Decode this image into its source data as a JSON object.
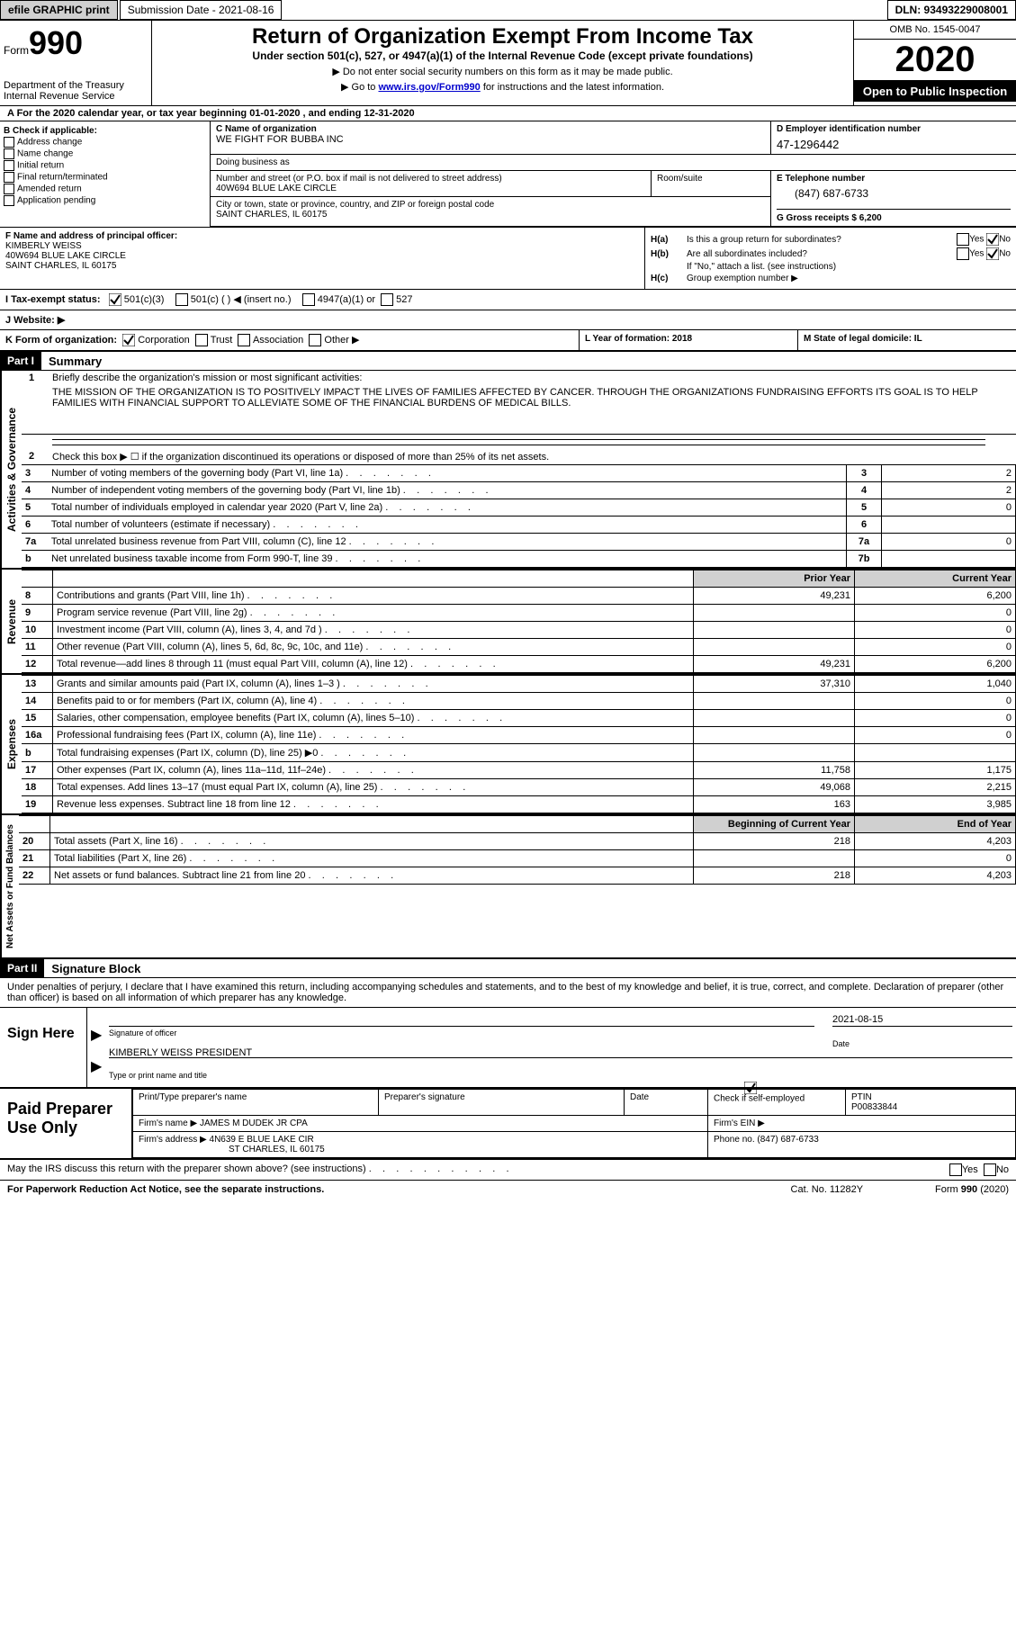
{
  "topbar": {
    "efile": "efile GRAPHIC print",
    "submission_label": "Submission Date - 2021-08-16",
    "dln": "DLN: 93493229008001"
  },
  "header": {
    "form_word": "Form",
    "form_number": "990",
    "dept": "Department of the Treasury",
    "irs": "Internal Revenue Service",
    "title": "Return of Organization Exempt From Income Tax",
    "subtitle": "Under section 501(c), 527, or 4947(a)(1) of the Internal Revenue Code (except private foundations)",
    "note1": "▶ Do not enter social security numbers on this form as it may be made public.",
    "note2_pre": "▶ Go to ",
    "note2_link": "www.irs.gov/Form990",
    "note2_post": " for instructions and the latest information.",
    "omb": "OMB No. 1545-0047",
    "year": "2020",
    "inspection": "Open to Public Inspection"
  },
  "row_a": "A For the 2020 calendar year, or tax year beginning 01-01-2020    , and ending 12-31-2020",
  "col_b": {
    "label": "B Check if applicable:",
    "opts": [
      "Address change",
      "Name change",
      "Initial return",
      "Final return/terminated",
      "Amended return",
      "Application pending"
    ]
  },
  "c": {
    "name_label": "C Name of organization",
    "name": "WE FIGHT FOR BUBBA INC",
    "dba_label": "Doing business as",
    "street_label": "Number and street (or P.O. box if mail is not delivered to street address)",
    "street": "40W694 BLUE LAKE CIRCLE",
    "room_label": "Room/suite",
    "city_label": "City or town, state or province, country, and ZIP or foreign postal code",
    "city": "SAINT CHARLES, IL  60175"
  },
  "d": {
    "label": "D Employer identification number",
    "ein": "47-1296442"
  },
  "e": {
    "label": "E Telephone number",
    "phone": "(847) 687-6733"
  },
  "g": {
    "label": "G Gross receipts $",
    "amount": "6,200"
  },
  "f": {
    "label": "F  Name and address of principal officer:",
    "name": "KIMBERLY WEISS",
    "addr1": "40W694 BLUE LAKE CIRCLE",
    "addr2": "SAINT CHARLES, IL  60175"
  },
  "h": {
    "a_label": "H(a)",
    "a_text": "Is this a group return for subordinates?",
    "b_label": "H(b)",
    "b_text": "Are all subordinates included?",
    "if_no": "If \"No,\" attach a list. (see instructions)",
    "c_label": "H(c)",
    "c_text": "Group exemption number ▶",
    "yes": "Yes",
    "no": "No"
  },
  "i": {
    "label": "I   Tax-exempt status:",
    "opt1": "501(c)(3)",
    "opt2": "501(c) (  ) ◀ (insert no.)",
    "opt3": "4947(a)(1) or",
    "opt4": "527"
  },
  "j": {
    "label": "J   Website: ▶"
  },
  "k": {
    "label": "K Form of organization:",
    "corp": "Corporation",
    "trust": "Trust",
    "assoc": "Association",
    "other": "Other ▶"
  },
  "l": {
    "text": "L Year of formation: 2018"
  },
  "m": {
    "text": "M State of legal domicile: IL"
  },
  "part1": {
    "header": "Part I",
    "title": "Summary",
    "side1": "Activities & Governance",
    "side2": "Revenue",
    "side3": "Expenses",
    "side4": "Net Assets or Fund Balances",
    "line1_label": "1",
    "line1": "Briefly describe the organization's mission or most significant activities:",
    "mission": "THE MISSION OF THE ORGANIZATION IS TO POSITIVELY IMPACT THE LIVES OF FAMILIES AFFECTED BY CANCER. THROUGH THE ORGANIZATIONS FUNDRAISING EFFORTS ITS GOAL IS TO HELP FAMILIES WITH FINANCIAL SUPPORT TO ALLEVIATE SOME OF THE FINANCIAL BURDENS OF MEDICAL BILLS.",
    "line2_label": "2",
    "line2": "Check this box ▶ ☐  if the organization discontinued its operations or disposed of more than 25% of its net assets.",
    "lines_small": [
      {
        "n": "3",
        "t": "Number of voting members of the governing body (Part VI, line 1a)",
        "box": "3",
        "v": "2"
      },
      {
        "n": "4",
        "t": "Number of independent voting members of the governing body (Part VI, line 1b)",
        "box": "4",
        "v": "2"
      },
      {
        "n": "5",
        "t": "Total number of individuals employed in calendar year 2020 (Part V, line 2a)",
        "box": "5",
        "v": "0"
      },
      {
        "n": "6",
        "t": "Total number of volunteers (estimate if necessary)",
        "box": "6",
        "v": ""
      },
      {
        "n": "7a",
        "t": "Total unrelated business revenue from Part VIII, column (C), line 12",
        "box": "7a",
        "v": "0"
      },
      {
        "n": "b",
        "t": "Net unrelated business taxable income from Form 990-T, line 39",
        "box": "7b",
        "v": ""
      }
    ],
    "prior_year": "Prior Year",
    "current_year": "Current Year",
    "rev_lines": [
      {
        "n": "8",
        "t": "Contributions and grants (Part VIII, line 1h)",
        "py": "49,231",
        "cy": "6,200"
      },
      {
        "n": "9",
        "t": "Program service revenue (Part VIII, line 2g)",
        "py": "",
        "cy": "0"
      },
      {
        "n": "10",
        "t": "Investment income (Part VIII, column (A), lines 3, 4, and 7d )",
        "py": "",
        "cy": "0"
      },
      {
        "n": "11",
        "t": "Other revenue (Part VIII, column (A), lines 5, 6d, 8c, 9c, 10c, and 11e)",
        "py": "",
        "cy": "0"
      },
      {
        "n": "12",
        "t": "Total revenue—add lines 8 through 11 (must equal Part VIII, column (A), line 12)",
        "py": "49,231",
        "cy": "6,200"
      }
    ],
    "exp_lines": [
      {
        "n": "13",
        "t": "Grants and similar amounts paid (Part IX, column (A), lines 1–3 )",
        "py": "37,310",
        "cy": "1,040"
      },
      {
        "n": "14",
        "t": "Benefits paid to or for members (Part IX, column (A), line 4)",
        "py": "",
        "cy": "0"
      },
      {
        "n": "15",
        "t": "Salaries, other compensation, employee benefits (Part IX, column (A), lines 5–10)",
        "py": "",
        "cy": "0"
      },
      {
        "n": "16a",
        "t": "Professional fundraising fees (Part IX, column (A), line 11e)",
        "py": "",
        "cy": "0"
      },
      {
        "n": "b",
        "t": "Total fundraising expenses (Part IX, column (D), line 25) ▶0",
        "py": "grey",
        "cy": "grey"
      },
      {
        "n": "17",
        "t": "Other expenses (Part IX, column (A), lines 11a–11d, 11f–24e)",
        "py": "11,758",
        "cy": "1,175"
      },
      {
        "n": "18",
        "t": "Total expenses. Add lines 13–17 (must equal Part IX, column (A), line 25)",
        "py": "49,068",
        "cy": "2,215"
      },
      {
        "n": "19",
        "t": "Revenue less expenses. Subtract line 18 from line 12",
        "py": "163",
        "cy": "3,985"
      }
    ],
    "begin_year": "Beginning of Current Year",
    "end_year": "End of Year",
    "net_lines": [
      {
        "n": "20",
        "t": "Total assets (Part X, line 16)",
        "py": "218",
        "cy": "4,203"
      },
      {
        "n": "21",
        "t": "Total liabilities (Part X, line 26)",
        "py": "",
        "cy": "0"
      },
      {
        "n": "22",
        "t": "Net assets or fund balances. Subtract line 21 from line 20",
        "py": "218",
        "cy": "4,203"
      }
    ]
  },
  "part2": {
    "header": "Part II",
    "title": "Signature Block",
    "declaration": "Under penalties of perjury, I declare that I have examined this return, including accompanying schedules and statements, and to the best of my knowledge and belief, it is true, correct, and complete. Declaration of preparer (other than officer) is based on all information of which preparer has any knowledge.",
    "sign_here": "Sign Here",
    "sig_officer_label": "Signature of officer",
    "date_label": "Date",
    "sig_date": "2021-08-15",
    "officer_name": "KIMBERLY WEISS  PRESIDENT",
    "name_title_label": "Type or print name and title",
    "paid_prep": "Paid Preparer Use Only",
    "prep_name_label": "Print/Type preparer's name",
    "prep_sig_label": "Preparer's signature",
    "prep_date_label": "Date",
    "check_if": "Check           if self-employed",
    "ptin_label": "PTIN",
    "ptin": "P00833844",
    "firm_name_label": "Firm's name    ▶",
    "firm_name": "JAMES M DUDEK JR CPA",
    "firm_ein_label": "Firm's EIN ▶",
    "firm_addr_label": "Firm's address ▶",
    "firm_addr1": "4N639 E BLUE LAKE CIR",
    "firm_addr2": "ST CHARLES, IL  60175",
    "phone_label": "Phone no.",
    "phone": "(847) 687-6733",
    "discuss": "May the IRS discuss this return with the preparer shown above? (see instructions)",
    "yes": "Yes",
    "no": "No"
  },
  "footer": {
    "pra": "For Paperwork Reduction Act Notice, see the separate instructions.",
    "cat": "Cat. No. 11282Y",
    "form": "Form 990 (2020)"
  }
}
